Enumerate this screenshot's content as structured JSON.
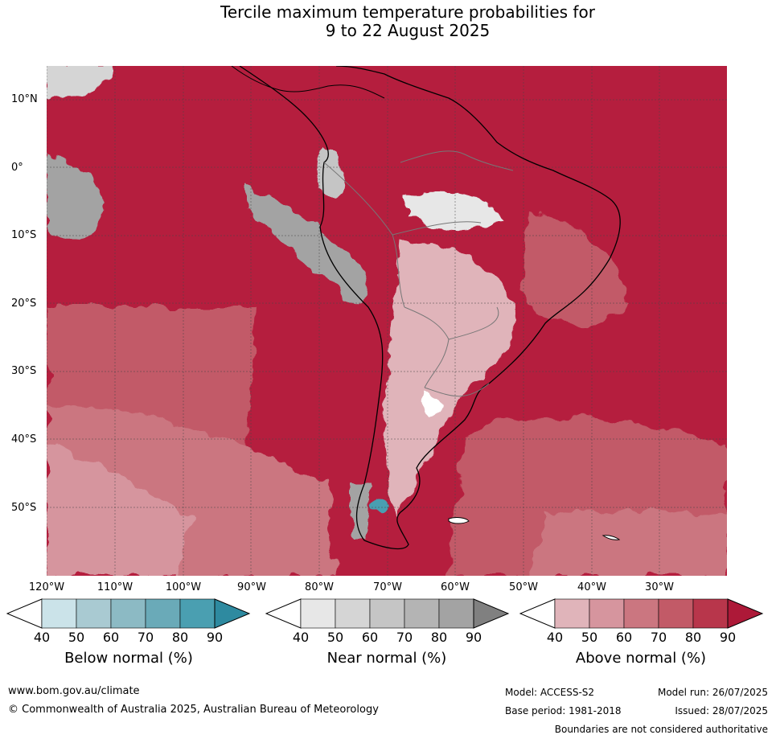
{
  "title": {
    "line1": "Tercile maximum temperature probabilities for",
    "line2": "9 to 22 August 2025"
  },
  "map": {
    "lat_labels": [
      "10°N",
      "0°",
      "10°S",
      "20°S",
      "30°S",
      "40°S",
      "50°S"
    ],
    "lon_labels": [
      "120°W",
      "110°W",
      "100°W",
      "90°W",
      "80°W",
      "70°W",
      "60°W",
      "50°W",
      "40°W",
      "30°W"
    ]
  },
  "colorbars": [
    {
      "title": "Below normal (%)",
      "ticks": [
        "40",
        "50",
        "60",
        "70",
        "80",
        "90"
      ],
      "colors": [
        "#ffffff",
        "#cbe3e9",
        "#a9cad2",
        "#8cbac4",
        "#6aaab8",
        "#4a9fb1",
        "#2e8aa0"
      ]
    },
    {
      "title": "Near normal (%)",
      "ticks": [
        "40",
        "50",
        "60",
        "70",
        "80",
        "90"
      ],
      "colors": [
        "#ffffff",
        "#e7e7e7",
        "#d5d5d5",
        "#c5c5c5",
        "#b4b4b4",
        "#a3a3a3",
        "#808080"
      ]
    },
    {
      "title": "Above normal (%)",
      "ticks": [
        "40",
        "50",
        "60",
        "70",
        "80",
        "90"
      ],
      "colors": [
        "#ffffff",
        "#e0b4ba",
        "#d6959e",
        "#cb7680",
        "#c25a67",
        "#b8364b",
        "#ad1938"
      ]
    }
  ],
  "footer": {
    "url": "www.bom.gov.au/climate",
    "copyright": "© Commonwealth of Australia 2025, Australian Bureau of Meteorology",
    "model": "Model: ACCESS-S2",
    "base_period": "Base period: 1981-2018",
    "model_run": "Model run: 26/07/2025",
    "issued": "Issued: 28/07/2025",
    "disclaimer": "Boundaries are not considered authoritative"
  }
}
